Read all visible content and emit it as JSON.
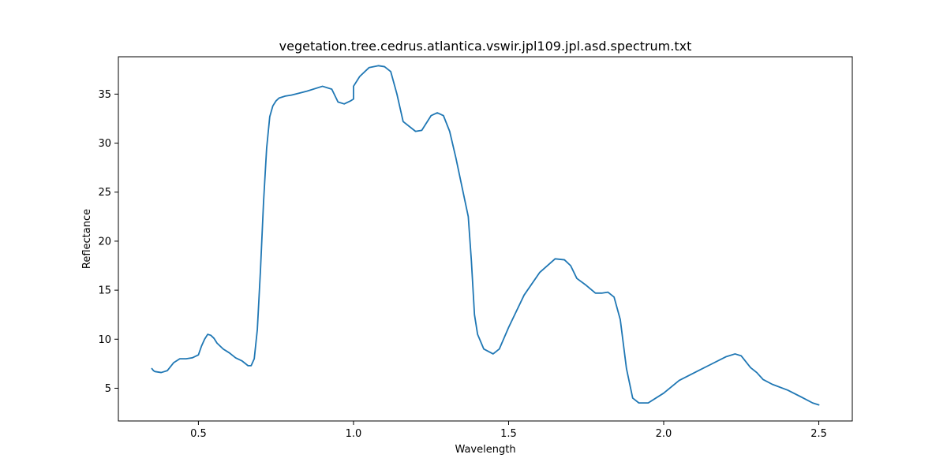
{
  "chart_data": {
    "type": "line",
    "title": "vegetation.tree.cedrus.atlantica.vswir.jpl109.jpl.asd.spectrum.txt",
    "xlabel": "Wavelength",
    "ylabel": "Reflectance",
    "xlim": [
      0.242,
      2.608
    ],
    "ylim": [
      1.66,
      38.81
    ],
    "xticks": [
      0.5,
      1.0,
      1.5,
      2.0,
      2.5
    ],
    "xtick_labels": [
      "0.5",
      "1.0",
      "1.5",
      "2.0",
      "2.5"
    ],
    "yticks": [
      5,
      10,
      15,
      20,
      25,
      30,
      35
    ],
    "ytick_labels": [
      "5",
      "10",
      "15",
      "20",
      "25",
      "30",
      "35"
    ],
    "grid": false,
    "series": [
      {
        "color": "#1f77b4",
        "x": [
          0.35,
          0.355,
          0.36,
          0.38,
          0.4,
          0.42,
          0.44,
          0.46,
          0.48,
          0.5,
          0.51,
          0.52,
          0.53,
          0.54,
          0.55,
          0.56,
          0.58,
          0.6,
          0.62,
          0.64,
          0.66,
          0.67,
          0.68,
          0.69,
          0.7,
          0.71,
          0.72,
          0.73,
          0.74,
          0.75,
          0.76,
          0.78,
          0.8,
          0.85,
          0.9,
          0.93,
          0.95,
          0.97,
          0.99,
          1.0,
          1.0,
          1.02,
          1.05,
          1.08,
          1.1,
          1.12,
          1.14,
          1.16,
          1.2,
          1.22,
          1.25,
          1.27,
          1.29,
          1.31,
          1.33,
          1.35,
          1.37,
          1.38,
          1.39,
          1.4,
          1.42,
          1.45,
          1.47,
          1.5,
          1.55,
          1.6,
          1.65,
          1.68,
          1.7,
          1.72,
          1.75,
          1.78,
          1.8,
          1.82,
          1.84,
          1.86,
          1.88,
          1.9,
          1.92,
          1.95,
          2.0,
          2.05,
          2.1,
          2.15,
          2.2,
          2.23,
          2.25,
          2.28,
          2.3,
          2.32,
          2.35,
          2.4,
          2.45,
          2.48,
          2.5
        ],
        "y": [
          7.0,
          6.8,
          6.7,
          6.6,
          6.8,
          7.6,
          8.0,
          8.0,
          8.1,
          8.4,
          9.3,
          10.0,
          10.5,
          10.4,
          10.1,
          9.6,
          9.0,
          8.6,
          8.1,
          7.8,
          7.3,
          7.3,
          8.0,
          11.0,
          17.0,
          24.0,
          29.5,
          32.7,
          33.8,
          34.3,
          34.6,
          34.8,
          34.9,
          35.3,
          35.8,
          35.5,
          34.2,
          34.0,
          34.3,
          34.5,
          35.8,
          36.8,
          37.7,
          37.9,
          37.8,
          37.3,
          35.0,
          32.2,
          31.2,
          31.3,
          32.8,
          33.1,
          32.8,
          31.2,
          28.5,
          25.5,
          22.5,
          18.0,
          12.5,
          10.5,
          9.0,
          8.5,
          9.0,
          11.2,
          14.5,
          16.8,
          18.2,
          18.1,
          17.5,
          16.2,
          15.5,
          14.7,
          14.7,
          14.8,
          14.3,
          12.0,
          7.0,
          4.0,
          3.5,
          3.5,
          4.5,
          5.8,
          6.6,
          7.4,
          8.2,
          8.5,
          8.3,
          7.1,
          6.6,
          5.9,
          5.4,
          4.8,
          4.0,
          3.5,
          3.3
        ]
      }
    ]
  }
}
